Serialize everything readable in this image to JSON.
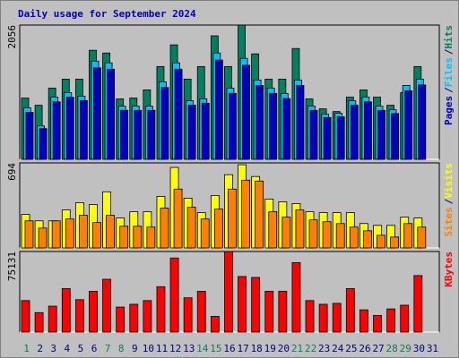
{
  "chart_data": [
    {
      "type": "bar",
      "title": "Daily usage for September 2024",
      "ylim": [
        0,
        2056
      ],
      "yticks": [
        2056
      ],
      "legend_separator": "/",
      "series": [
        {
          "name": "Pages",
          "color": "#0000c0",
          "values": [
            720,
            470,
            880,
            950,
            900,
            1400,
            1380,
            750,
            750,
            750,
            1100,
            1380,
            830,
            860,
            1520,
            1010,
            1440,
            1130,
            1010,
            930,
            1130,
            750,
            640,
            650,
            830,
            880,
            750,
            700,
            1050,
            1140,
            null
          ]
        },
        {
          "name": "Files",
          "color": "#00c0ff",
          "values": [
            787,
            511,
            952,
            1021,
            966,
            1504,
            1477,
            814,
            814,
            814,
            1187,
            1477,
            897,
            925,
            1628,
            1090,
            1546,
            1214,
            1090,
            1007,
            1214,
            814,
            690,
            704,
            897,
            952,
            814,
            759,
            1132,
            1228,
            null
          ]
        },
        {
          "name": "Hits",
          "color": "#008060",
          "values": [
            938,
            828,
            1090,
            1228,
            1228,
            1670,
            1628,
            925,
            938,
            1063,
            1421,
            1753,
            1228,
            1421,
            1891,
            1421,
            2056,
            1615,
            1228,
            1228,
            1697,
            925,
            773,
            731,
            952,
            1063,
            952,
            828,
            1021,
            1421,
            null
          ]
        }
      ]
    },
    {
      "type": "bar",
      "ylim": [
        0,
        694
      ],
      "yticks": [
        694
      ],
      "legend_separator": "/",
      "series": [
        {
          "name": "Sites",
          "color": "#ff8000",
          "values": [
            221,
            162,
            221,
            236,
            266,
            207,
            266,
            177,
            177,
            170,
            325,
            480,
            332,
            236,
            317,
            480,
            553,
            546,
            295,
            251,
            310,
            229,
            214,
            199,
            170,
            140,
            103,
            89,
            199,
            170,
            null
          ]
        },
        {
          "name": "Visits",
          "color": "#ffff00",
          "values": [
            273,
            221,
            221,
            310,
            369,
            354,
            458,
            244,
            295,
            295,
            421,
            657,
            406,
            288,
            428,
            598,
            679,
            583,
            399,
            376,
            362,
            295,
            288,
            288,
            288,
            199,
            184,
            184,
            251,
            244,
            null
          ]
        }
      ]
    },
    {
      "type": "bar",
      "ylim": [
        0,
        75131
      ],
      "yticks": [
        75131
      ],
      "categories": [
        "1",
        "2",
        "3",
        "4",
        "5",
        "6",
        "7",
        "8",
        "9",
        "10",
        "11",
        "12",
        "13",
        "14",
        "15",
        "16",
        "17",
        "18",
        "19",
        "20",
        "21",
        "22",
        "23",
        "24",
        "25",
        "26",
        "27",
        "28",
        "29",
        "30",
        "31"
      ],
      "category_colors": [
        "#008060",
        "#000080",
        "#000080",
        "#000080",
        "#000080",
        "#000080",
        "#008060",
        "#008060",
        "#000080",
        "#000080",
        "#000080",
        "#000080",
        "#000080",
        "#008060",
        "#008060",
        "#000080",
        "#000080",
        "#000080",
        "#000080",
        "#000080",
        "#008060",
        "#008060",
        "#000080",
        "#000080",
        "#000080",
        "#000080",
        "#000080",
        "#008060",
        "#008060",
        "#000080",
        "#000080"
      ],
      "series": [
        {
          "name": "KBytes",
          "color": "#ff0000",
          "values": [
            29362,
            18136,
            24181,
            40589,
            30226,
            38000,
            49226,
            23317,
            25908,
            29362,
            42316,
            69086,
            31953,
            38000,
            14681,
            75131,
            51817,
            50954,
            38000,
            38000,
            64768,
            29362,
            25908,
            26771,
            40589,
            20727,
            15545,
            21590,
            25045,
            52681,
            null
          ]
        }
      ]
    }
  ]
}
